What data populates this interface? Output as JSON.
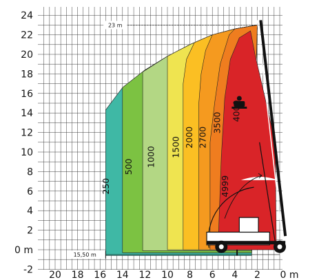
{
  "chart_data": {
    "type": "area",
    "title": "",
    "xlabel": "",
    "ylabel": "",
    "x_unit": "m",
    "y_unit": "m",
    "xlim": [
      21,
      0
    ],
    "ylim": [
      -2,
      25
    ],
    "x_ticks": [
      {
        "value": 20,
        "label": "20"
      },
      {
        "value": 18,
        "label": "18"
      },
      {
        "value": 16,
        "label": "16"
      },
      {
        "value": 14,
        "label": "14"
      },
      {
        "value": 12,
        "label": "12"
      },
      {
        "value": 10,
        "label": "10"
      },
      {
        "value": 8,
        "label": "8"
      },
      {
        "value": 6,
        "label": "6"
      },
      {
        "value": 4,
        "label": "4"
      },
      {
        "value": 2,
        "label": "2"
      },
      {
        "value": 0,
        "label": "0 m"
      }
    ],
    "y_ticks": [
      {
        "value": 24,
        "label": "24"
      },
      {
        "value": 22,
        "label": "22"
      },
      {
        "value": 20,
        "label": "20"
      },
      {
        "value": 18,
        "label": "18"
      },
      {
        "value": 16,
        "label": "16"
      },
      {
        "value": 14,
        "label": "14"
      },
      {
        "value": 12,
        "label": "12"
      },
      {
        "value": 10,
        "label": "10"
      },
      {
        "value": 8,
        "label": "8"
      },
      {
        "value": 6,
        "label": "6"
      },
      {
        "value": 4,
        "label": "4"
      },
      {
        "value": 2,
        "label": "2"
      },
      {
        "value": 0,
        "label": "0 m"
      },
      {
        "value": -2,
        "label": "-2"
      }
    ],
    "grid": true,
    "load_zones": [
      {
        "label": "250",
        "color": "#3fb8a5",
        "outer_reach": 15.5,
        "label_at": [
          15.2,
          6.5
        ]
      },
      {
        "label": "500",
        "color": "#7cc242",
        "outer_reach": 14.0,
        "label_at": [
          13.2,
          8.5
        ]
      },
      {
        "label": "1000",
        "color": "#b3d784",
        "outer_reach": 12.2,
        "label_at": [
          11.2,
          9.5
        ]
      },
      {
        "label": "1500",
        "color": "#efe450",
        "outer_reach": 10.0,
        "label_at": [
          9.0,
          10.5
        ]
      },
      {
        "label": "2000",
        "color": "#fbbf23",
        "outer_reach": 8.5,
        "label_at": [
          7.8,
          11.5
        ]
      },
      {
        "label": "2700",
        "color": "#f59a1f",
        "outer_reach": 7.2,
        "label_at": [
          6.6,
          11.5
        ]
      },
      {
        "label": "3500",
        "color": "#ef7d1f",
        "outer_reach": 6.0,
        "label_at": [
          5.3,
          13.0
        ]
      },
      {
        "label": "4000",
        "color": "#d92428",
        "outer_reach": 4.8,
        "label_at": [
          3.6,
          14.2
        ]
      },
      {
        "label": "4999",
        "color": "#d92428",
        "outer_reach": 4.8,
        "label_at": [
          4.6,
          6.5
        ]
      }
    ],
    "annotations": [
      {
        "text": "23 m",
        "value": 23
      },
      {
        "text": "15,50 m",
        "value": 15.5
      }
    ],
    "icons": [
      "operator-icon",
      "telehandler-icon",
      "boom-arc-arrow-icon"
    ]
  }
}
